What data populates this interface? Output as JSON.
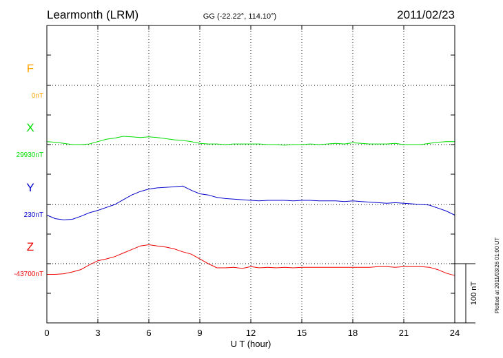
{
  "header": {
    "station": "Learmonth (LRM)",
    "coords": "GG (-22.22°, 114.10°)",
    "date": "2011/02/23"
  },
  "side_note": "Plotted at 2011/03/26 01:00 UT",
  "chart_data": {
    "type": "line",
    "xlabel": "U T (hour)",
    "xlim": [
      0,
      24
    ],
    "xticks": [
      "0",
      "3",
      "6",
      "9",
      "12",
      "15",
      "18",
      "21",
      "24"
    ],
    "scale_bar_label": "100 nT",
    "scale_nT": 100,
    "grid": true,
    "series": [
      {
        "name": "F",
        "baseline_label": "0nT",
        "color": "#ffa500",
        "hours": [],
        "values_nT": []
      },
      {
        "name": "X",
        "baseline_label": "29930nT",
        "color": "#00dd00",
        "hours": [
          0,
          0.5,
          1,
          1.5,
          2,
          2.5,
          3,
          3.5,
          4,
          4.5,
          5,
          5.5,
          6,
          6.5,
          7,
          7.5,
          8,
          8.5,
          9,
          9.5,
          10,
          10.5,
          11,
          11.5,
          12,
          12.5,
          13,
          13.5,
          14,
          14.5,
          15,
          15.5,
          16,
          16.5,
          17,
          17.5,
          18,
          18.5,
          19,
          19.5,
          20,
          20.5,
          21,
          21.5,
          22,
          22.5,
          23,
          23.5,
          24
        ],
        "values_nT": [
          5,
          4,
          2,
          0,
          0,
          1,
          5,
          9,
          11,
          14,
          13,
          12,
          13,
          12,
          10,
          8,
          7,
          5,
          2,
          1,
          1,
          0,
          1,
          1,
          1,
          1,
          0,
          0,
          -1,
          0,
          0,
          1,
          0,
          1,
          2,
          1,
          3,
          2,
          1,
          1,
          1,
          2,
          0,
          0,
          0,
          2,
          4,
          5,
          5
        ]
      },
      {
        "name": "Y",
        "baseline_label": "230nT",
        "color": "#0000cc",
        "hours": [
          0,
          0.5,
          1,
          1.5,
          2,
          2.5,
          3,
          3.5,
          4,
          4.5,
          5,
          5.5,
          6,
          6.5,
          7,
          7.5,
          8,
          8.5,
          9,
          9.5,
          10,
          10.5,
          11,
          11.5,
          12,
          12.5,
          13,
          13.5,
          14,
          14.5,
          15,
          15.5,
          16,
          16.5,
          17,
          17.5,
          18,
          18.5,
          19,
          19.5,
          20,
          20.5,
          21,
          21.5,
          22,
          22.5,
          23,
          23.5,
          24
        ],
        "values_nT": [
          -18,
          -24,
          -26,
          -25,
          -20,
          -14,
          -10,
          -5,
          0,
          8,
          16,
          22,
          26,
          28,
          29,
          30,
          31,
          24,
          18,
          16,
          12,
          10,
          9,
          8,
          7,
          6,
          7,
          7,
          7,
          6,
          7,
          7,
          6,
          6,
          6,
          5,
          6,
          5,
          4,
          3,
          2,
          3,
          2,
          1,
          0,
          -1,
          -6,
          -11,
          -18
        ]
      },
      {
        "name": "Z",
        "baseline_label": "-43700nT",
        "color": "#ee0000",
        "hours": [
          0,
          0.5,
          1,
          1.5,
          2,
          2.5,
          3,
          3.5,
          4,
          4.5,
          5,
          5.5,
          6,
          6.5,
          7,
          7.5,
          8,
          8.5,
          9,
          9.5,
          10,
          10.5,
          11,
          11.5,
          12,
          12.5,
          13,
          13.5,
          14,
          14.5,
          15,
          15.5,
          16,
          16.5,
          17,
          17.5,
          18,
          18.5,
          19,
          19.5,
          20,
          20.5,
          21,
          21.5,
          22,
          22.5,
          23,
          23.5,
          24
        ],
        "values_nT": [
          -18,
          -18,
          -17,
          -14,
          -10,
          -2,
          5,
          8,
          12,
          18,
          24,
          30,
          32,
          30,
          28,
          25,
          20,
          16,
          8,
          0,
          -7,
          -7,
          -6,
          -8,
          -5,
          -7,
          -6,
          -7,
          -6,
          -7,
          -6,
          -6,
          -6,
          -6,
          -6,
          -6,
          -6,
          -6,
          -6,
          -5,
          -5,
          -6,
          -5,
          -5,
          -5,
          -6,
          -10,
          -16,
          -20
        ]
      }
    ]
  }
}
